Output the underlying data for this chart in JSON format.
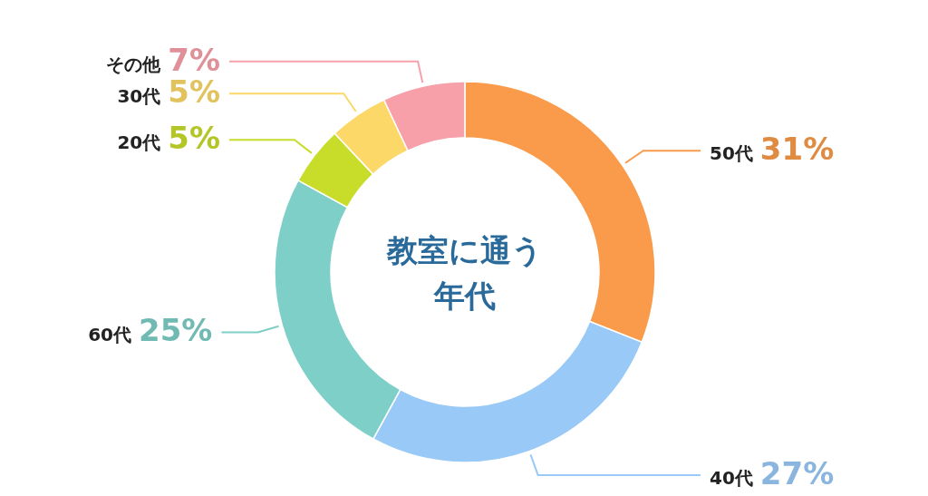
{
  "chart_data": {
    "type": "donut",
    "title": "教室に通う年代",
    "categories": [
      "50代",
      "40代",
      "60代",
      "20代",
      "30代",
      "その他"
    ],
    "values": [
      31,
      27,
      25,
      5,
      5,
      7
    ],
    "colors": [
      "#f99b4a",
      "#99c9f7",
      "#7ecfc8",
      "#c8dc2a",
      "#fbd867",
      "#f8a0aa"
    ],
    "value_labels": [
      "31%",
      "27%",
      "25%",
      "5%",
      "5%",
      "7%"
    ]
  }
}
